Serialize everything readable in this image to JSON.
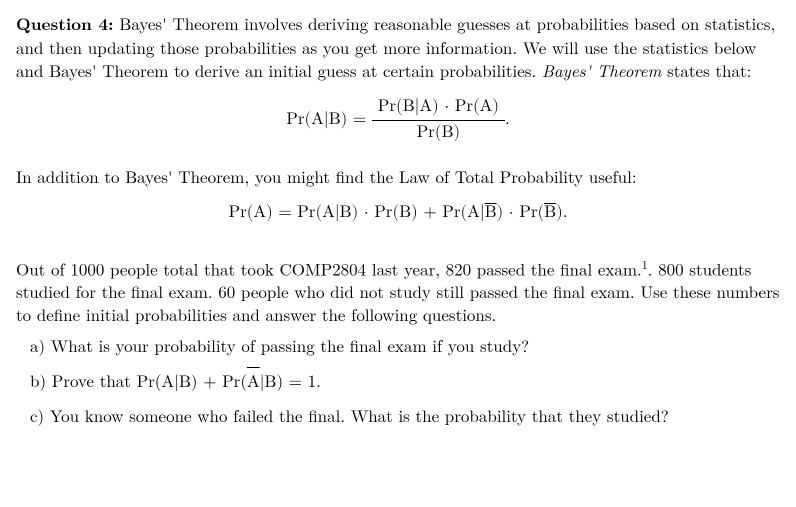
{
  "question": {
    "label": "Question 4:",
    "intro": "Bayes' Theorem involves deriving reasonable guesses at probabilities based on statistics, and then updating those probabilities as you get more information. We will use the statistics below and Bayes' Theorem to derive an initial guess at certain probabilities.",
    "theorem_phrase": "Bayes' Theorem",
    "states_that": " states that:",
    "bayes_lhs": "Pr(A|B) = ",
    "bayes_num": "Pr(B|A) · Pr(A)",
    "bayes_den": "Pr(B)",
    "bayes_tail": ".",
    "addition_text": "In addition to Bayes' Theorem, you might find the Law of Total Probability useful:",
    "ltp_pre": "Pr(A) = Pr(A|B) · Pr(B) + Pr(A|",
    "ltp_bbar": "B",
    "ltp_mid": ") · Pr(",
    "ltp_bbar2": "B",
    "ltp_post": ").",
    "setup": "Out of 1000 people total that took COMP2804 last year, 820 passed the final exam.",
    "footnote_mark": "1",
    "setup2": ". 800 students studied for the final exam. 60 people who did not study still passed the final exam. Use these numbers to define initial probabilities and answer the following questions.",
    "parts": {
      "a_label": "a)",
      "a_text": "What is your probability of passing the final exam if you study?",
      "b_label": "b)",
      "b_pre": "Prove that Pr(A|B) + Pr(",
      "b_abar": "A",
      "b_post": "|B) = 1.",
      "c_label": "c)",
      "c_text": "You know someone who failed the final. What is the probability that they studied?"
    }
  }
}
